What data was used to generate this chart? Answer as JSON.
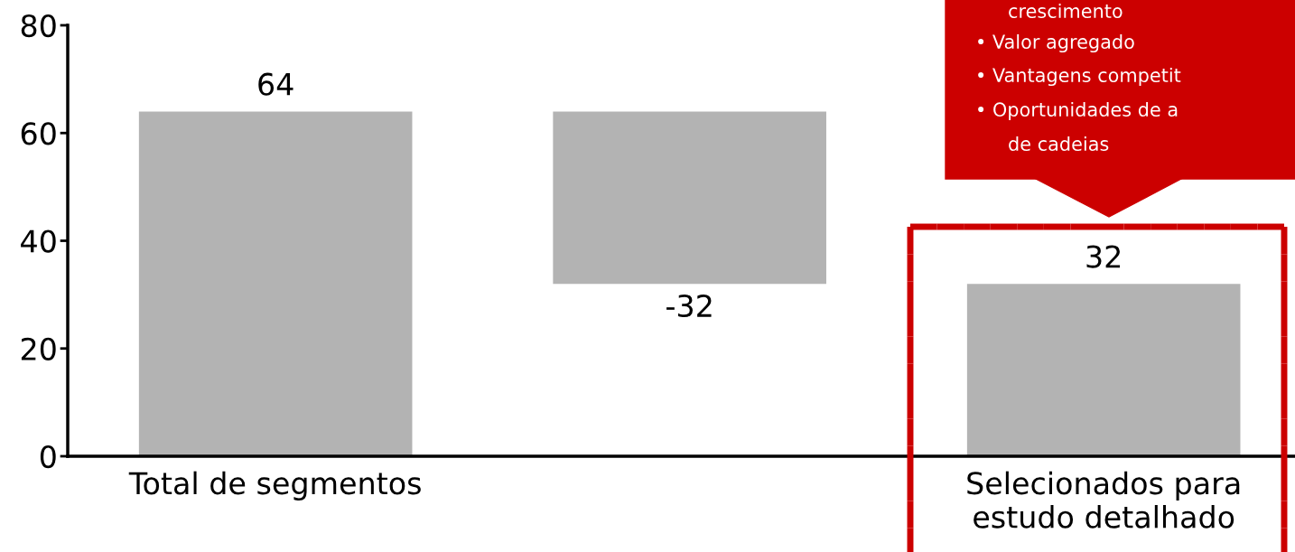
{
  "chart_data": {
    "type": "bar",
    "categories": [
      "Total de segmentos",
      null,
      "Selecionados para\nestudo detalhado"
    ],
    "values": [
      64,
      -32,
      32
    ],
    "base": [
      0,
      64,
      0
    ],
    "color": "#b3b3b3",
    "data_labels": true,
    "ylim": [
      0,
      80
    ],
    "yticks": [
      0,
      20,
      40,
      60,
      80
    ],
    "grid": false,
    "annotations": [
      "crescimento",
      "• Valor agregado",
      "• Vantagens competit",
      "• Oportunidades de a",
      "de cadeias"
    ]
  }
}
